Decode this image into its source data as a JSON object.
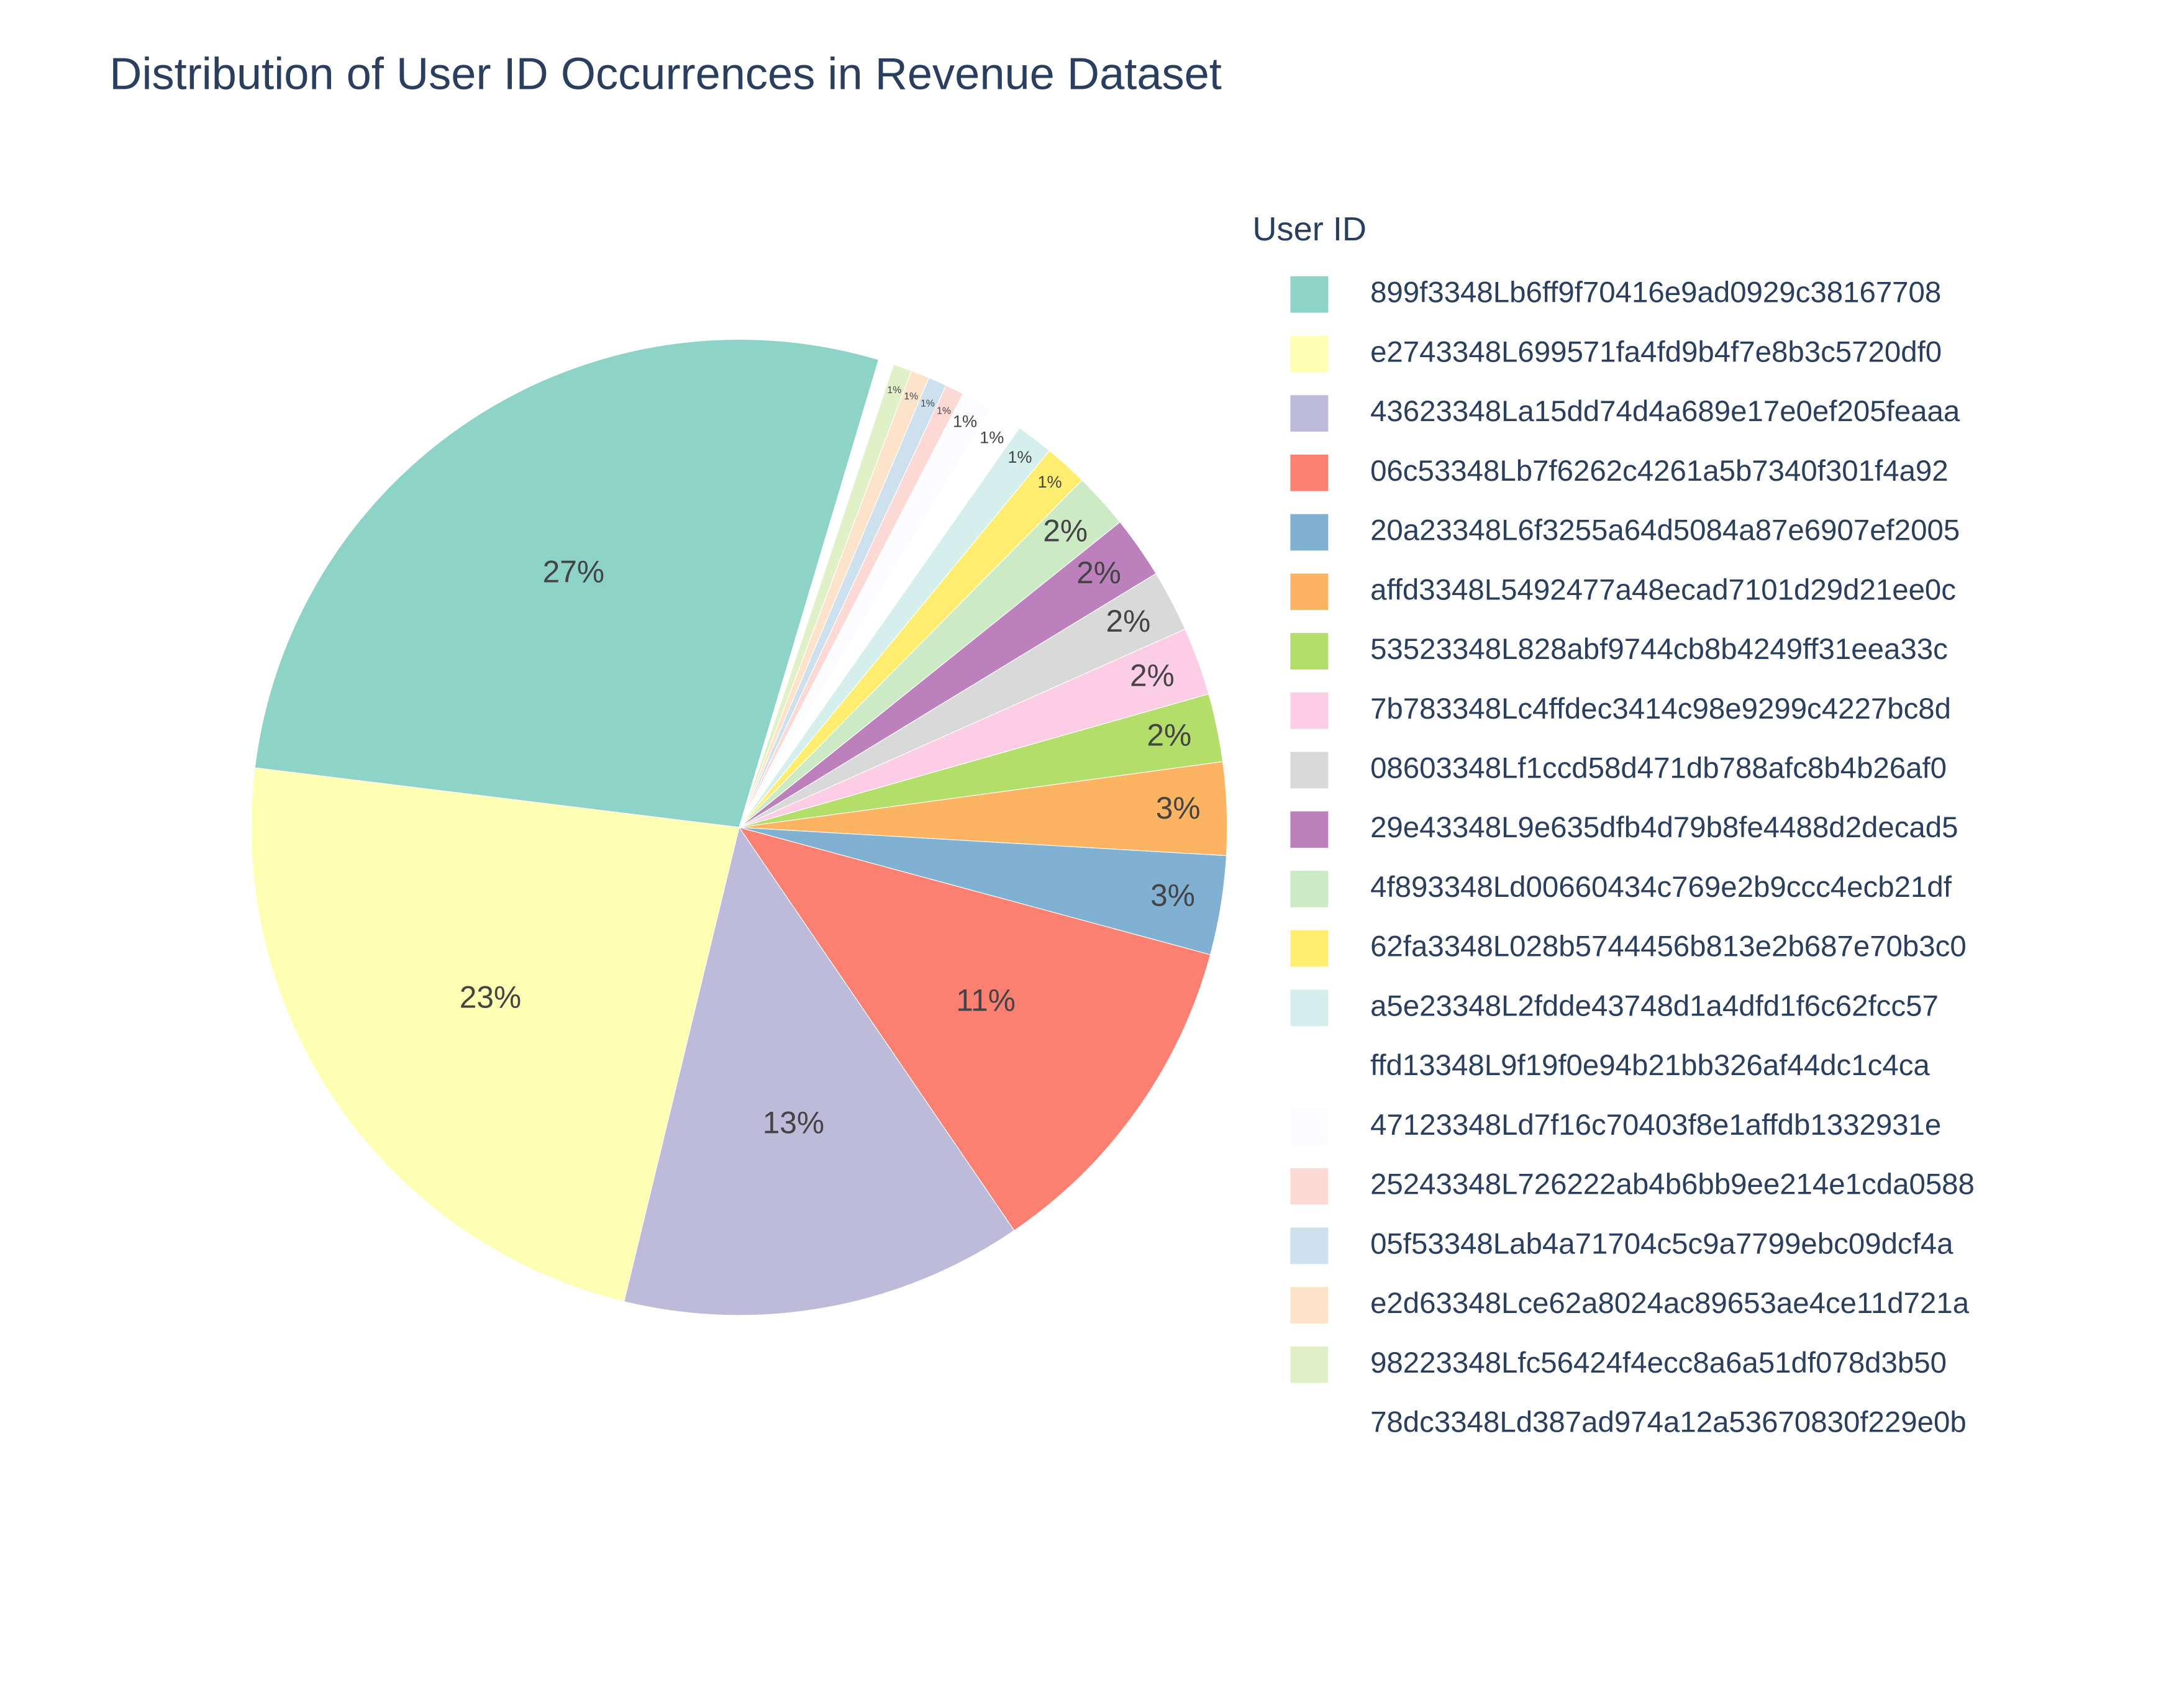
{
  "chart_data": {
    "type": "pie",
    "title": "Distribution of User ID Occurrences in Revenue Dataset",
    "legend_title": "User ID",
    "legend": "right",
    "categories": [
      "899f3348Lb6ff9f70416e9ad0929c38167708",
      "e2743348L699571fa4fd9b4f7e8b3c5720df0",
      "43623348La15dd74d4a689e17e0ef205feaaa",
      "06c53348Lb7f6262c4261a5b7340f301f4a92",
      "20a23348L6f3255a64d5084a87e6907ef2005",
      "affd3348L5492477a48ecad7101d29d21ee0c",
      "53523348L828abf9744cb8b4249ff31eea33c",
      "7b783348Lc4ffdec3414c98e9299c4227bc8d",
      "08603348Lf1ccd58d471db788afc8b4b26af0",
      "29e43348L9e635dfb4d79b8fe4488d2decad5",
      "4f893348Ld00660434c769e2b9ccc4ecb21df",
      "62fa3348L028b5744456b813e2b687e70b3c0",
      "a5e23348L2fdde43748d1a4dfd1f6c62fcc57",
      "ffd13348L9f19f0e94b21bb326af44dc1c4ca",
      "47123348Ld7f16c70403f8e1affdb1332931e",
      "25243348L726222ab4b6bb9ee214e1cda0588",
      "05f53348Lab4a71704c5c9a7799ebc09dcf4a",
      "e2d63348Lce62a8024ac89653ae4ce11d721a",
      "98223348Lfc56424f4ecc8a6a51df078d3b50",
      "78dc3348Ld387ad974a12a53670830f229e0b"
    ],
    "values": [
      27,
      22.6,
      13,
      11,
      3.2,
      3,
      2.2,
      2.2,
      2,
      2,
      1.8,
      1.4,
      1.2,
      1.1,
      1.0,
      0.6,
      0.6,
      0.6,
      0.6,
      0.5
    ],
    "value_labels": [
      "27%",
      "23%",
      "13%",
      "11%",
      "3%",
      "3%",
      "2%",
      "2%",
      "2%",
      "2%",
      "2%",
      "1%",
      "1%",
      "1%",
      "1%",
      "1%",
      "1%",
      "1%",
      "1%",
      null
    ],
    "colors": [
      "#8dd3c7",
      "#ffffb3",
      "#bebada",
      "#fb8072",
      "#80b1d3",
      "#fdb462",
      "#b3de69",
      "#fccde5",
      "#d9d9d9",
      "#bc80bd",
      "#ccebc5",
      "#ffed6f",
      "#d5f0ec",
      "#ffffff",
      "#fcfcfe",
      "#fdd9d5",
      "#cde0ee",
      "#fde3c9",
      "#e1f1c7",
      "#ffffff"
    ]
  }
}
